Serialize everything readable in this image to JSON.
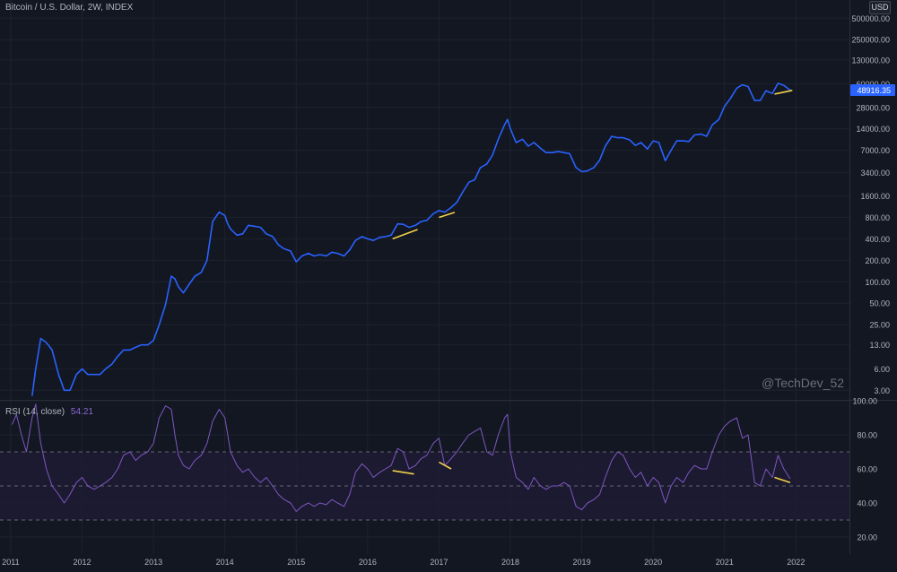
{
  "header": {
    "symbol_title": "Bitcoin / U.S. Dollar, 2W, INDEX",
    "currency": "USD",
    "watermark": "@TechDev_52"
  },
  "colors": {
    "background": "#131722",
    "price_line": "#2962ff",
    "rsi_line": "#7e57c2",
    "rsi_band": "#1e1b33",
    "divergence": "#f2d04b",
    "grid": "#1e222d",
    "axis_text": "#b2b5be",
    "price_badge": "#2962ff"
  },
  "chart_data": [
    {
      "type": "line",
      "title": "Bitcoin / U.S. Dollar, 2W, INDEX",
      "y_scale": "log",
      "ylim": [
        2.2,
        900000
      ],
      "xlim": [
        2010.85,
        2022.75
      ],
      "y_ticks": [
        "500000.00",
        "250000.00",
        "130000.00",
        "60000.00",
        "28000.00",
        "14000.00",
        "7000.00",
        "3400.00",
        "1600.00",
        "800.00",
        "400.00",
        "200.00",
        "100.00",
        "50.00",
        "25.00",
        "13.00",
        "6.00",
        "3.00"
      ],
      "x_ticks": [
        "2011",
        "2012",
        "2013",
        "2014",
        "2015",
        "2016",
        "2017",
        "2018",
        "2019",
        "2020",
        "2021",
        "2022"
      ],
      "current_value_label": "48916.35",
      "current_value": 48916.35,
      "series": [
        {
          "x": [
            2011.3,
            2011.35,
            2011.42,
            2011.5,
            2011.58,
            2011.67,
            2011.75,
            2011.83,
            2011.92,
            2012.0,
            2012.08,
            2012.17,
            2012.25,
            2012.33,
            2012.42,
            2012.5,
            2012.58,
            2012.67,
            2012.75,
            2012.83,
            2012.92,
            2013.0,
            2013.08,
            2013.17,
            2013.25,
            2013.3,
            2013.35,
            2013.42,
            2013.5,
            2013.58,
            2013.67,
            2013.75,
            2013.83,
            2013.92,
            2014.0,
            2014.04,
            2014.08,
            2014.17,
            2014.25,
            2014.33,
            2014.42,
            2014.5,
            2014.58,
            2014.67,
            2014.75,
            2014.83,
            2014.92,
            2015.0,
            2015.08,
            2015.17,
            2015.25,
            2015.33,
            2015.42,
            2015.5,
            2015.58,
            2015.67,
            2015.75,
            2015.83,
            2015.92,
            2016.0,
            2016.08,
            2016.17,
            2016.25,
            2016.33,
            2016.42,
            2016.5,
            2016.58,
            2016.67,
            2016.75,
            2016.83,
            2016.92,
            2017.0,
            2017.08,
            2017.17,
            2017.25,
            2017.33,
            2017.42,
            2017.5,
            2017.58,
            2017.67,
            2017.75,
            2017.83,
            2017.92,
            2017.96,
            2018.0,
            2018.08,
            2018.17,
            2018.25,
            2018.33,
            2018.42,
            2018.5,
            2018.58,
            2018.67,
            2018.75,
            2018.83,
            2018.92,
            2019.0,
            2019.08,
            2019.17,
            2019.25,
            2019.33,
            2019.42,
            2019.5,
            2019.58,
            2019.67,
            2019.75,
            2019.83,
            2019.92,
            2020.0,
            2020.08,
            2020.17,
            2020.25,
            2020.33,
            2020.42,
            2020.5,
            2020.58,
            2020.67,
            2020.75,
            2020.83,
            2020.92,
            2021.0,
            2021.08,
            2021.17,
            2021.25,
            2021.33,
            2021.42,
            2021.5,
            2021.58,
            2021.67,
            2021.75,
            2021.83,
            2021.92
          ],
          "values": [
            2.5,
            6,
            16,
            14,
            11,
            5,
            3,
            3,
            5,
            6,
            5,
            5,
            5,
            6,
            7,
            9,
            11,
            11,
            12,
            13,
            13,
            15,
            25,
            48,
            120,
            110,
            85,
            70,
            92,
            120,
            135,
            200,
            700,
            950,
            850,
            650,
            550,
            450,
            470,
            620,
            600,
            580,
            470,
            430,
            330,
            290,
            270,
            190,
            230,
            250,
            230,
            240,
            230,
            260,
            250,
            230,
            280,
            380,
            430,
            400,
            380,
            420,
            430,
            450,
            650,
            640,
            580,
            620,
            700,
            730,
            900,
            1000,
            950,
            1100,
            1300,
            1800,
            2500,
            2700,
            4000,
            4500,
            6000,
            10000,
            16000,
            19000,
            14000,
            9000,
            10000,
            8000,
            9000,
            7500,
            6500,
            6500,
            6700,
            6500,
            6300,
            4000,
            3500,
            3600,
            4000,
            5100,
            8000,
            11000,
            10500,
            10500,
            9800,
            8200,
            9000,
            7300,
            9500,
            9000,
            5000,
            7000,
            9500,
            9500,
            9300,
            11500,
            11800,
            11000,
            16000,
            19000,
            29000,
            37000,
            52000,
            58000,
            55000,
            35000,
            35000,
            48000,
            44000,
            61000,
            57000,
            48916.35
          ]
        }
      ],
      "divergence_lines": [
        {
          "x": [
            2016.35,
            2016.7
          ],
          "values": [
            400,
            540
          ]
        },
        {
          "x": [
            2017.0,
            2017.22
          ],
          "values": [
            800,
            940
          ]
        },
        {
          "x": [
            2021.7,
            2021.95
          ],
          "values": [
            43000,
            48500
          ]
        }
      ]
    },
    {
      "type": "line",
      "title": "RSI (14, close)",
      "value_label": "54.21",
      "ylim": [
        10,
        100
      ],
      "y_ticks": [
        "100.00",
        "80.00",
        "60.00",
        "40.00",
        "20.00"
      ],
      "bands": {
        "upper": 70,
        "middle": 50,
        "lower": 30
      },
      "series": [
        {
          "x": [
            2011.02,
            2011.08,
            2011.15,
            2011.22,
            2011.3,
            2011.35,
            2011.42,
            2011.5,
            2011.58,
            2011.67,
            2011.75,
            2011.83,
            2011.92,
            2012.0,
            2012.08,
            2012.17,
            2012.25,
            2012.33,
            2012.42,
            2012.5,
            2012.58,
            2012.67,
            2012.75,
            2012.83,
            2012.92,
            2013.0,
            2013.08,
            2013.17,
            2013.25,
            2013.3,
            2013.35,
            2013.42,
            2013.5,
            2013.58,
            2013.67,
            2013.75,
            2013.83,
            2013.92,
            2014.0,
            2014.04,
            2014.08,
            2014.17,
            2014.25,
            2014.33,
            2014.42,
            2014.5,
            2014.58,
            2014.67,
            2014.75,
            2014.83,
            2014.92,
            2015.0,
            2015.08,
            2015.17,
            2015.25,
            2015.33,
            2015.42,
            2015.5,
            2015.58,
            2015.67,
            2015.75,
            2015.83,
            2015.92,
            2016.0,
            2016.08,
            2016.17,
            2016.25,
            2016.33,
            2016.42,
            2016.5,
            2016.58,
            2016.67,
            2016.75,
            2016.83,
            2016.92,
            2017.0,
            2017.08,
            2017.17,
            2017.25,
            2017.33,
            2017.42,
            2017.5,
            2017.58,
            2017.67,
            2017.75,
            2017.83,
            2017.92,
            2017.96,
            2018.0,
            2018.08,
            2018.17,
            2018.25,
            2018.33,
            2018.42,
            2018.5,
            2018.58,
            2018.67,
            2018.75,
            2018.83,
            2018.92,
            2019.0,
            2019.08,
            2019.17,
            2019.25,
            2019.33,
            2019.42,
            2019.5,
            2019.58,
            2019.67,
            2019.75,
            2019.83,
            2019.92,
            2020.0,
            2020.08,
            2020.17,
            2020.25,
            2020.33,
            2020.42,
            2020.5,
            2020.58,
            2020.67,
            2020.75,
            2020.83,
            2020.92,
            2021.0,
            2021.08,
            2021.17,
            2021.25,
            2021.33,
            2021.42,
            2021.5,
            2021.58,
            2021.67,
            2021.75,
            2021.83,
            2021.92
          ],
          "values": [
            86,
            92,
            80,
            70,
            90,
            98,
            75,
            60,
            50,
            45,
            40,
            45,
            52,
            55,
            50,
            48,
            50,
            52,
            55,
            60,
            68,
            70,
            65,
            68,
            70,
            75,
            90,
            97,
            95,
            80,
            68,
            62,
            60,
            65,
            68,
            75,
            88,
            95,
            90,
            80,
            70,
            62,
            58,
            60,
            55,
            52,
            55,
            50,
            45,
            42,
            40,
            35,
            38,
            40,
            38,
            40,
            39,
            42,
            40,
            38,
            45,
            58,
            63,
            60,
            55,
            58,
            60,
            62,
            72,
            70,
            60,
            62,
            66,
            68,
            75,
            78,
            62,
            66,
            70,
            75,
            80,
            82,
            84,
            70,
            68,
            80,
            90,
            92,
            70,
            55,
            52,
            48,
            55,
            50,
            48,
            50,
            50,
            52,
            50,
            38,
            36,
            40,
            42,
            45,
            55,
            65,
            70,
            68,
            60,
            55,
            58,
            50,
            55,
            52,
            40,
            50,
            55,
            52,
            58,
            62,
            60,
            60,
            70,
            80,
            85,
            88,
            90,
            78,
            80,
            52,
            50,
            60,
            55,
            68,
            60,
            54.21
          ]
        }
      ],
      "divergence_lines": [
        {
          "x": [
            2016.35,
            2016.65
          ],
          "values": [
            59,
            57
          ]
        },
        {
          "x": [
            2017.0,
            2017.17
          ],
          "values": [
            64,
            60
          ]
        },
        {
          "x": [
            2021.7,
            2021.92
          ],
          "values": [
            55,
            52
          ]
        }
      ]
    }
  ]
}
